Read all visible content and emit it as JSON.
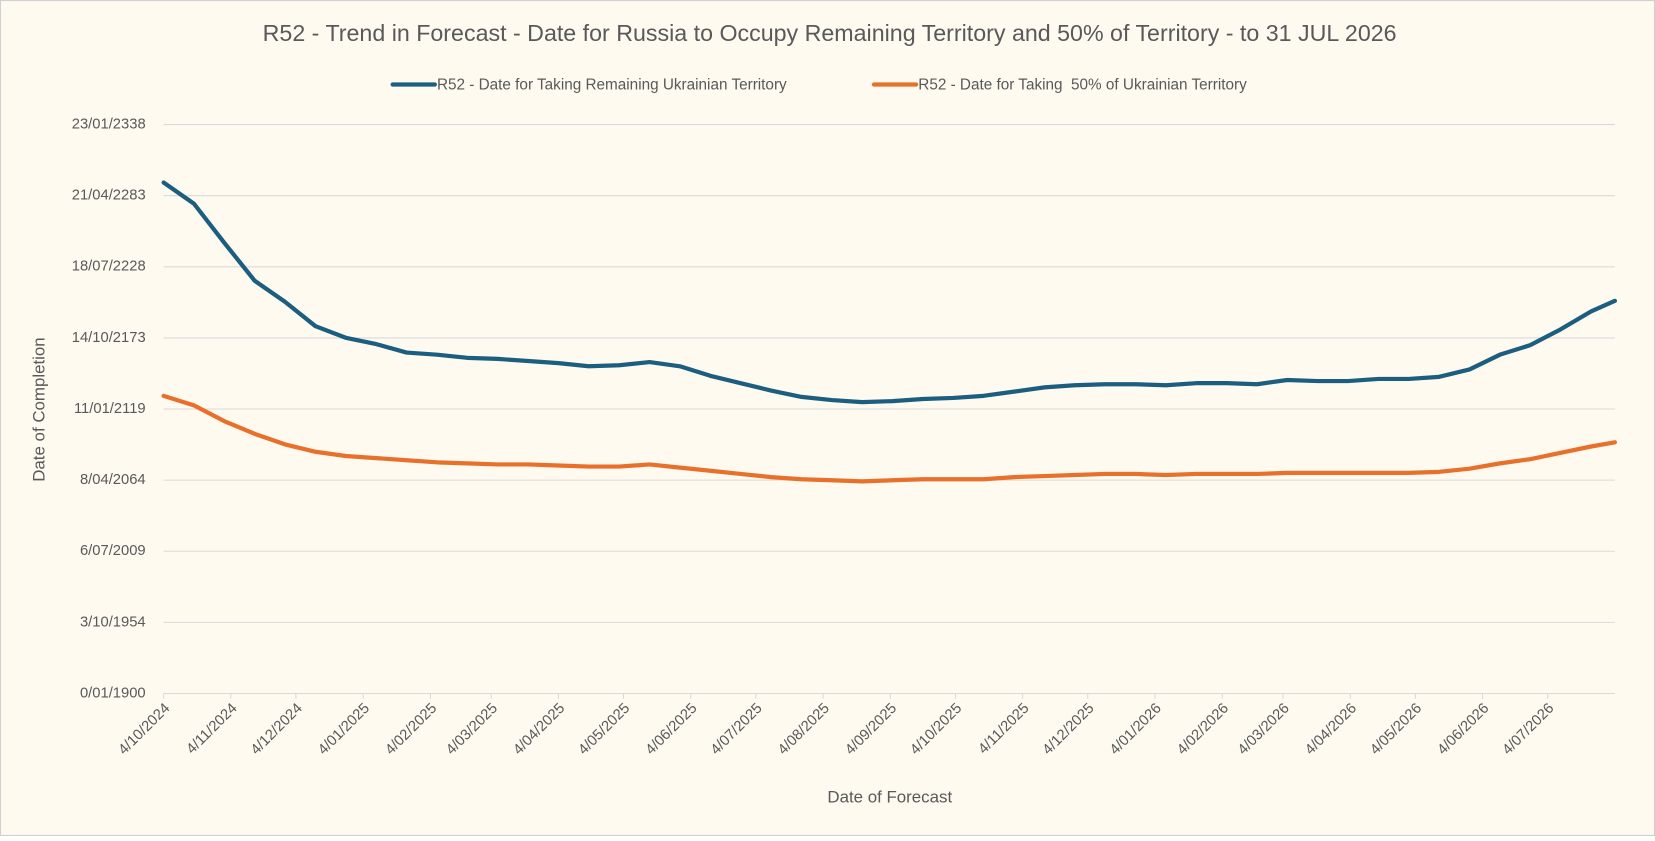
{
  "chart_data": {
    "type": "line",
    "title": "R52 - Trend in Forecast - Date for Russia to Occupy Remaining Territory and 50% of Territory - to 31 JUL 2026",
    "x_label": "Date of Forecast",
    "y_label": "Date of Completion",
    "x": [
      "4/10/2024",
      "18/10/2024",
      "1/11/2024",
      "15/11/2024",
      "29/11/2024",
      "13/12/2024",
      "27/12/2024",
      "10/01/2025",
      "24/01/2025",
      "7/02/2025",
      "21/02/2025",
      "7/03/2025",
      "21/03/2025",
      "4/04/2025",
      "18/04/2025",
      "2/05/2025",
      "16/05/2025",
      "30/05/2025",
      "13/06/2025",
      "27/06/2025",
      "11/07/2025",
      "25/07/2025",
      "8/08/2025",
      "22/08/2025",
      "5/09/2025",
      "19/09/2025",
      "3/10/2025",
      "17/10/2025",
      "31/10/2025",
      "14/11/2025",
      "28/11/2025",
      "12/12/2025",
      "26/12/2025",
      "9/01/2026",
      "23/01/2026",
      "6/02/2026",
      "20/02/2026",
      "6/03/2026",
      "20/03/2026",
      "3/04/2026",
      "17/04/2026",
      "1/05/2026",
      "15/05/2026",
      "29/05/2026",
      "12/06/2026",
      "26/06/2026",
      "10/07/2026",
      "24/07/2026",
      "4/08/2026"
    ],
    "series": [
      {
        "name": "R52 - Date for Taking Remaining Ukrainian Territory",
        "color": "#1b5e80",
        "values": [
          143700,
          137740,
          126750,
          116070,
          110130,
          103300,
          100040,
          98260,
          95880,
          95290,
          94400,
          94100,
          93510,
          92910,
          92020,
          92320,
          93210,
          92020,
          89350,
          87270,
          85200,
          83410,
          82520,
          81930,
          82230,
          82820,
          83120,
          83710,
          84900,
          86090,
          86680,
          86980,
          86980,
          86680,
          87270,
          87270,
          86980,
          88160,
          87870,
          87870,
          88460,
          88460,
          89060,
          91130,
          95290,
          97960,
          102410,
          107460,
          110430
        ]
      },
      {
        "name": "R52 - Date for Taking  50% of Ukrainian Territory",
        "color": "#e8702a",
        "values": [
          83710,
          81040,
          76590,
          73030,
          70060,
          67980,
          66790,
          66200,
          65600,
          65010,
          64710,
          64420,
          64420,
          64120,
          63820,
          63820,
          64420,
          63530,
          62640,
          61740,
          60850,
          60260,
          59960,
          59670,
          59960,
          60260,
          60260,
          60260,
          60850,
          61150,
          61450,
          61740,
          61740,
          61450,
          61740,
          61740,
          61740,
          62040,
          62040,
          62040,
          62040,
          62040,
          62340,
          63230,
          64710,
          65900,
          67680,
          69460,
          70650
        ]
      }
    ],
    "xlim": [
      "4/10/2024",
      "4/08/2026"
    ],
    "xticks": [
      "4/10/2024",
      "4/11/2024",
      "4/12/2024",
      "4/01/2025",
      "4/02/2025",
      "4/03/2025",
      "4/04/2025",
      "4/05/2025",
      "4/06/2025",
      "4/07/2025",
      "4/08/2025",
      "4/09/2025",
      "4/10/2025",
      "4/11/2025",
      "4/12/2025",
      "4/01/2026",
      "4/02/2026",
      "4/03/2026",
      "4/04/2026",
      "4/05/2026",
      "4/06/2026",
      "4/07/2026"
    ],
    "ylim": [
      0,
      160000
    ],
    "yticks": [
      {
        "value": 0,
        "label": "0/01/1900"
      },
      {
        "value": 20000,
        "label": "3/10/1954"
      },
      {
        "value": 40000,
        "label": "6/07/2009"
      },
      {
        "value": 60000,
        "label": "8/04/2064"
      },
      {
        "value": 80000,
        "label": "11/01/2119"
      },
      {
        "value": 100000,
        "label": "14/10/2173"
      },
      {
        "value": 120000,
        "label": "18/07/2228"
      },
      {
        "value": 140000,
        "label": "21/04/2283"
      },
      {
        "value": 160000,
        "label": "23/01/2338"
      }
    ],
    "grid": true,
    "legend": "top"
  }
}
